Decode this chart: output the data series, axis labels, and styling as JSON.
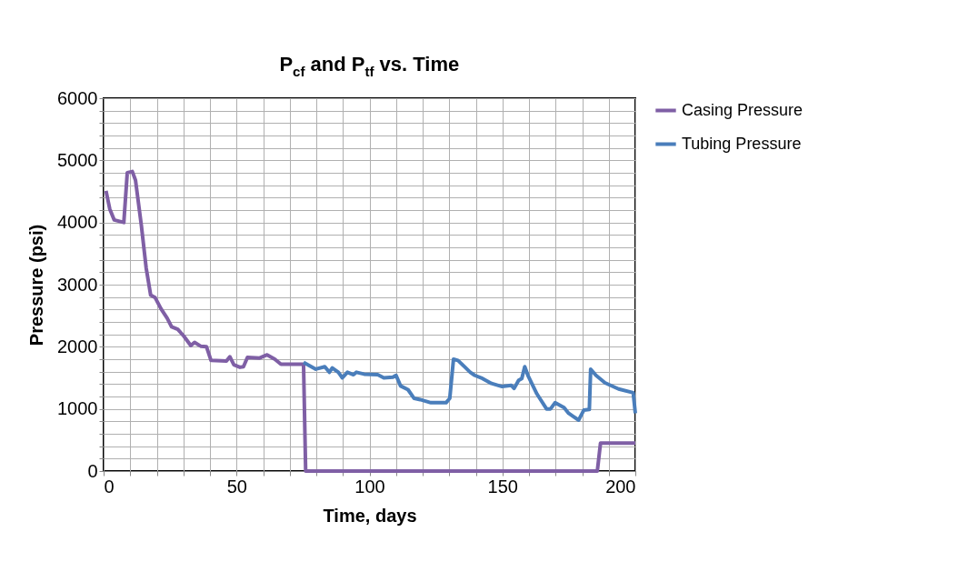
{
  "chart_data": {
    "type": "line",
    "title": "P$_{cf}$ and P$_{tf}$ vs. Time",
    "xlabel": "Time, days",
    "ylabel": "Pressure (psi)",
    "xlim": [
      0,
      200
    ],
    "ylim": [
      0,
      6000
    ],
    "xticks": [
      0,
      {
        "value": 10,
        "label": null
      },
      {
        "value": 20,
        "label": null
      },
      {
        "value": 30,
        "label": null
      },
      {
        "value": 40,
        "label": null
      },
      50,
      {
        "value": 60,
        "label": null
      },
      {
        "value": 70,
        "label": null
      },
      {
        "value": 80,
        "label": null
      },
      {
        "value": 90,
        "label": null
      },
      100,
      {
        "value": 110,
        "label": null
      },
      {
        "value": 120,
        "label": null
      },
      {
        "value": 130,
        "label": null
      },
      {
        "value": 140,
        "label": null
      },
      150,
      {
        "value": 160,
        "label": null
      },
      {
        "value": 170,
        "label": null
      },
      {
        "value": 180,
        "label": null
      },
      {
        "value": 190,
        "label": null
      },
      200
    ],
    "yticks": [
      0,
      {
        "value": 200,
        "label": null
      },
      {
        "value": 400,
        "label": null
      },
      {
        "value": 600,
        "label": null
      },
      {
        "value": 800,
        "label": null
      },
      1000,
      {
        "value": 1200,
        "label": null
      },
      {
        "value": 1400,
        "label": null
      },
      {
        "value": 1600,
        "label": null
      },
      {
        "value": 1800,
        "label": null
      },
      2000,
      {
        "value": 2200,
        "label": null
      },
      {
        "value": 2400,
        "label": null
      },
      {
        "value": 2600,
        "label": null
      },
      {
        "value": 2800,
        "label": null
      },
      3000,
      {
        "value": 3200,
        "label": null
      },
      {
        "value": 3400,
        "label": null
      },
      {
        "value": 3600,
        "label": null
      },
      {
        "value": 3800,
        "label": null
      },
      4000,
      {
        "value": 4200,
        "label": null
      },
      {
        "value": 4400,
        "label": null
      },
      {
        "value": 4600,
        "label": null
      },
      {
        "value": 4800,
        "label": null
      },
      5000,
      {
        "value": 5200,
        "label": null
      },
      {
        "value": 5400,
        "label": null
      },
      {
        "value": 5600,
        "label": null
      },
      {
        "value": 5800,
        "label": null
      },
      6000
    ],
    "grid": true,
    "legend": "right",
    "marker": "none",
    "line_style": "solid",
    "series": [
      {
        "name": "Casing Pressure",
        "color": "#7f5fa5",
        "x": [
          0.9,
          2.3,
          4.0,
          7.6,
          8.9,
          10.8,
          12.0,
          14.2,
          16.0,
          17.7,
          19.4,
          21.6,
          23.9,
          25.6,
          27.9,
          30.2,
          32.8,
          34.2,
          36.5,
          38.7,
          40.4,
          46.2,
          47.5,
          49.0,
          51.3,
          52.6,
          54.1,
          58.7,
          61.5,
          64.4,
          66.7,
          74.1,
          75.2,
          76.0,
          185.7,
          186.9,
          200.0
        ],
        "values": [
          4510,
          4220,
          4040,
          4000,
          4800,
          4820,
          4680,
          3950,
          3270,
          2830,
          2790,
          2610,
          2460,
          2320,
          2280,
          2170,
          2020,
          2070,
          2010,
          2000,
          1780,
          1770,
          1840,
          1710,
          1670,
          1680,
          1830,
          1820,
          1870,
          1800,
          1720,
          1720,
          1720,
          0,
          0,
          450,
          450
        ]
      },
      {
        "name": "Tubing Pressure",
        "color": "#4a7ebb",
        "x": [
          75.2,
          79.8,
          83.2,
          84.9,
          86.0,
          88.3,
          89.8,
          91.7,
          94.0,
          95.1,
          98.0,
          103.1,
          105.4,
          108.8,
          110.0,
          111.7,
          114.5,
          116.8,
          119.1,
          123.1,
          128.8,
          130.2,
          131.6,
          133.3,
          137.9,
          139.6,
          142.5,
          145.9,
          149.9,
          153.3,
          154.4,
          156.1,
          157.3,
          158.4,
          159.6,
          163.0,
          166.6,
          168.1,
          169.8,
          173.2,
          174.9,
          176.6,
          178.7,
          180.6,
          182.7,
          183.2,
          185.2,
          188.6,
          193.7,
          199.2,
          200.0
        ],
        "values": [
          1750,
          1640,
          1680,
          1590,
          1660,
          1590,
          1500,
          1590,
          1550,
          1590,
          1560,
          1550,
          1500,
          1510,
          1540,
          1370,
          1310,
          1170,
          1150,
          1100,
          1100,
          1170,
          1800,
          1780,
          1590,
          1540,
          1490,
          1410,
          1360,
          1380,
          1330,
          1460,
          1490,
          1680,
          1540,
          1240,
          1000,
          1000,
          1100,
          1020,
          930,
          880,
          820,
          980,
          990,
          1640,
          1540,
          1420,
          1320,
          1260,
          930
        ]
      }
    ]
  }
}
